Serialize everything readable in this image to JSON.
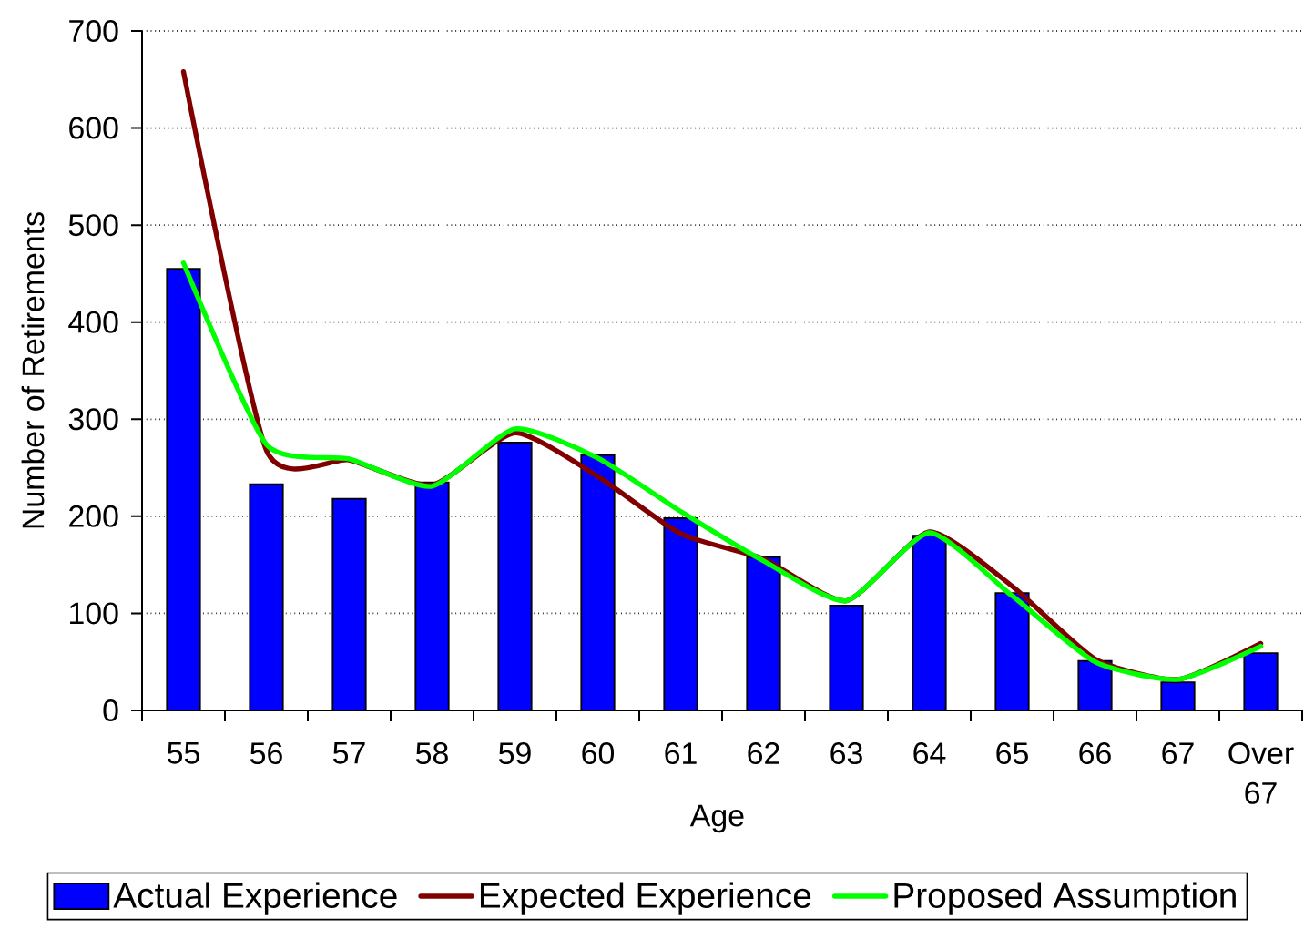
{
  "chart_data": {
    "type": "bar",
    "xlabel": "Age",
    "ylabel": "Number of Retirements",
    "categories": [
      "55",
      "56",
      "57",
      "58",
      "59",
      "60",
      "61",
      "62",
      "63",
      "64",
      "65",
      "66",
      "67",
      "Over 67"
    ],
    "series": [
      {
        "name": "Actual Experience",
        "color": "#0000ff",
        "values": [
          455,
          233,
          218,
          235,
          276,
          263,
          198,
          158,
          108,
          180,
          121,
          51,
          29,
          59
        ]
      },
      {
        "name": "Expected Experience",
        "type": "line",
        "color": "#800000",
        "values": [
          658,
          268,
          258,
          232,
          286,
          241,
          182,
          156,
          113,
          184,
          128,
          53,
          32,
          69
        ]
      },
      {
        "name": "Proposed Assumption",
        "type": "line",
        "color": "#00ff00",
        "values": [
          461,
          274,
          259,
          231,
          290,
          260,
          205,
          154,
          113,
          183,
          118,
          50,
          32,
          66
        ]
      }
    ],
    "ylim": [
      0,
      700
    ],
    "yticks": [
      0,
      100,
      200,
      300,
      400,
      500,
      600,
      700
    ],
    "grid": "y",
    "legend": "bottom"
  }
}
